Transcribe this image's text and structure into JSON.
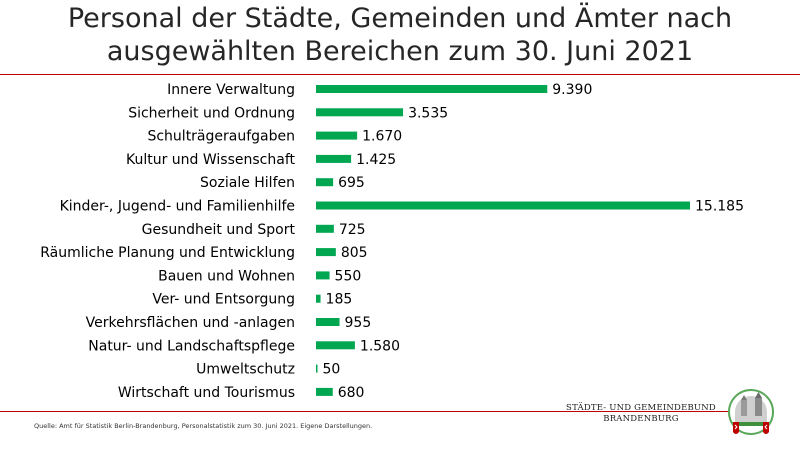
{
  "title_lines": [
    "Personal der Städte, Gemeinden und Ämter nach",
    "ausgewählten Bereichen zum 30. Juni 2021"
  ],
  "colors": {
    "bar": "#00a650",
    "accent_rule": "#c00000",
    "text": "#000000"
  },
  "chart_data": {
    "type": "bar",
    "orientation": "horizontal",
    "title": "Personal der Städte, Gemeinden und Ämter nach ausgewählten Bereichen zum 30. Juni 2021",
    "categories": [
      "Innere Verwaltung",
      "Sicherheit und Ordnung",
      "Schulträgeraufgaben",
      "Kultur und Wissenschaft",
      "Soziale Hilfen",
      "Kinder-, Jugend- und Familienhilfe",
      "Gesundheit und Sport",
      "Räumliche Planung und Entwicklung",
      "Bauen und Wohnen",
      "Ver- und Entsorgung",
      "Verkehrsflächen und -anlagen",
      "Natur- und Landschaftspflege",
      "Umweltschutz",
      "Wirtschaft und Tourismus"
    ],
    "values": [
      9390,
      3535,
      1670,
      1425,
      695,
      15185,
      725,
      805,
      550,
      185,
      955,
      1580,
      50,
      680
    ],
    "value_labels": [
      "9.390",
      "3.535",
      "1.670",
      "1.425",
      "695",
      "15.185",
      "725",
      "805",
      "550",
      "185",
      "955",
      "1.580",
      "50",
      "680"
    ],
    "xlim": [
      0,
      15185
    ],
    "grid": false,
    "legend": "none",
    "xlabel": "",
    "ylabel": ""
  },
  "footer": {
    "source": "Quelle: Amt für Statistik Berlin-Brandenburg, Personalstatistik zum 30. Juni 2021. Eigene Darstellungen.",
    "logo_line1": "STÄDTE- UND GEMEINDEBUND",
    "logo_line2": "BRANDENBURG"
  }
}
